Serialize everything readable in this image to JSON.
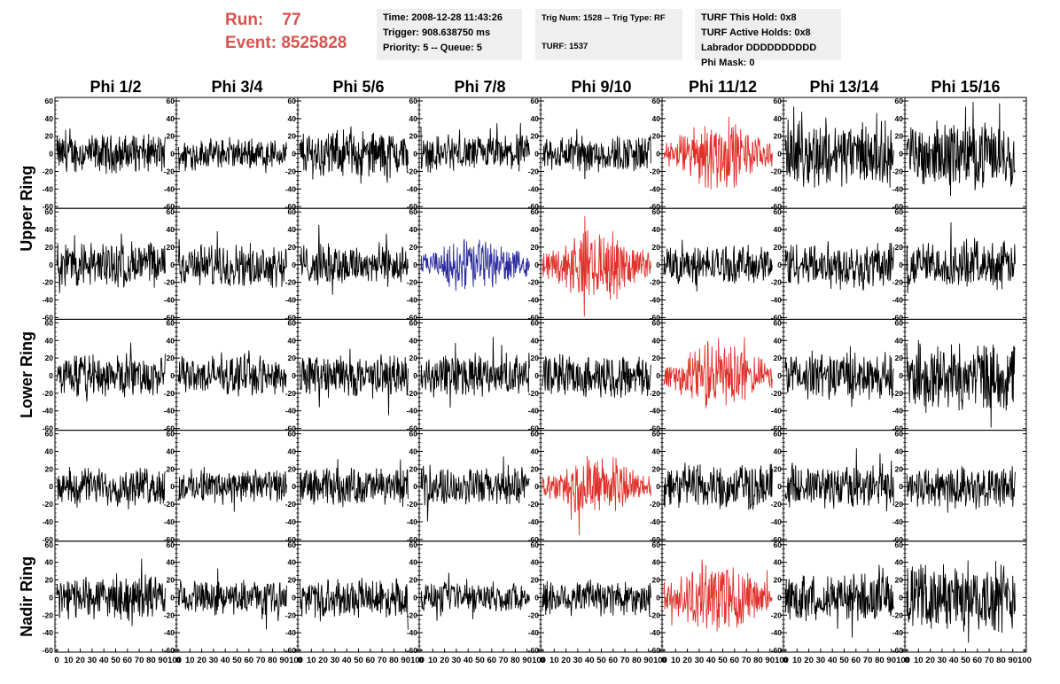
{
  "header": {
    "run_label": "Run:",
    "run_value": "77",
    "event_label": "Event:",
    "event_value": "8525828",
    "time": "Time: 2008-12-28 11:43:26",
    "trigger": "Trigger: 908.638750 ms",
    "priority": "Priority: 5 -- Queue: 5",
    "trig_num": "Trig Num: 1528 -- Trig Type: RF",
    "turf": "TURF: 1537",
    "turf_this_hold": "TURF This Hold: 0x8",
    "turf_active_holds": "TURF Active Holds: 0x8",
    "labrador": "Labrador DDDDDDDDDD",
    "phi_mask": "Phi Mask: 0"
  },
  "chart_data": {
    "type": "line",
    "columns": [
      "Phi 1/2",
      "Phi 3/4",
      "Phi 5/6",
      "Phi 7/8",
      "Phi 9/10",
      "Phi 11/12",
      "Phi 13/14",
      "Phi 15/16"
    ],
    "rows": [
      "Upper Ring",
      "Lower Ring",
      "Nadir Ring"
    ],
    "panel_rows": 5,
    "ylim": [
      -60,
      60
    ],
    "y_ticks": [
      -60,
      -40,
      -20,
      0,
      20,
      40,
      60
    ],
    "xlim": [
      0,
      100
    ],
    "x_tick_labels": [
      "0",
      "10",
      "20",
      "30",
      "40",
      "50",
      "60",
      "70",
      "80",
      "90",
      "100"
    ],
    "colors": {
      "normal": "#000000",
      "triggered": "#e0302a",
      "highlight": "#2b2ba0"
    },
    "highlighted_panels": [
      {
        "row": 0,
        "col": 5,
        "color": "triggered"
      },
      {
        "row": 1,
        "col": 3,
        "color": "highlight"
      },
      {
        "row": 1,
        "col": 4,
        "color": "triggered"
      },
      {
        "row": 2,
        "col": 5,
        "color": "triggered"
      },
      {
        "row": 3,
        "col": 4,
        "color": "triggered"
      },
      {
        "row": 4,
        "col": 5,
        "color": "triggered"
      }
    ],
    "amplitudes": [
      [
        18,
        14,
        22,
        17,
        18,
        28,
        30,
        30
      ],
      [
        22,
        20,
        20,
        22,
        28,
        18,
        22,
        22
      ],
      [
        20,
        18,
        20,
        20,
        20,
        28,
        22,
        32
      ],
      [
        18,
        16,
        18,
        18,
        24,
        22,
        20,
        20
      ],
      [
        20,
        16,
        18,
        14,
        18,
        30,
        22,
        32
      ]
    ],
    "grid": false,
    "legend": false
  }
}
